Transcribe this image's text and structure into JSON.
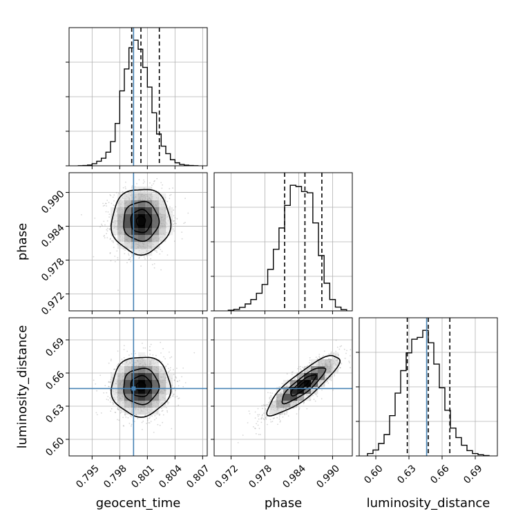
{
  "chart_data": {
    "type": "corner",
    "parameters": [
      "geocent_time",
      "phase",
      "luminosity_distance"
    ],
    "axis_labels": {
      "geocent_time": "geocent_time",
      "phase": "phase",
      "luminosity_distance": "luminosity_distance"
    },
    "ranges": {
      "geocent_time": [
        0.7925,
        0.8075
      ],
      "phase": [
        0.969,
        0.9935
      ],
      "luminosity_distance": [
        0.585,
        0.71
      ]
    },
    "ticks": {
      "geocent_time": {
        "values": [
          0.795,
          0.798,
          0.801,
          0.804,
          0.807
        ],
        "labels": [
          "0.795",
          "0.798",
          "0.801",
          "0.804",
          "0.807"
        ]
      },
      "phase": {
        "values": [
          0.972,
          0.978,
          0.984,
          0.99
        ],
        "labels": [
          "0.972",
          "0.978",
          "0.984",
          "0.990"
        ]
      },
      "luminosity_distance": {
        "values": [
          0.6,
          0.63,
          0.66,
          0.69
        ],
        "labels": [
          "0.60",
          "0.63",
          "0.66",
          "0.69"
        ]
      }
    },
    "truths": {
      "geocent_time": 0.7995,
      "phase": null,
      "luminosity_distance": 0.646
    },
    "quantiles": {
      "geocent_time": [
        0.7993,
        0.8003,
        0.8023
      ],
      "phase": [
        0.9815,
        0.9851,
        0.9881
      ],
      "luminosity_distance": [
        0.6285,
        0.6475,
        0.667
      ]
    },
    "histograms": {
      "geocent_time": {
        "edges": [
          0.7935,
          0.794,
          0.7945,
          0.795,
          0.7955,
          0.796,
          0.7965,
          0.797,
          0.7975,
          0.798,
          0.7985,
          0.799,
          0.7995,
          0.8,
          0.8005,
          0.801,
          0.8015,
          0.802,
          0.8025,
          0.803,
          0.8035,
          0.804,
          0.8045,
          0.805,
          0.8055,
          0.806,
          0.8065
        ],
        "counts": [
          1,
          2,
          5,
          14,
          30,
          50,
          90,
          160,
          280,
          495,
          640,
          780,
          830,
          770,
          650,
          520,
          350,
          210,
          130,
          80,
          40,
          20,
          9,
          4,
          2,
          1
        ]
      },
      "phase": {
        "edges": [
          0.9715,
          0.9725,
          0.9735,
          0.9745,
          0.9755,
          0.9765,
          0.9775,
          0.9785,
          0.9795,
          0.9805,
          0.9815,
          0.9825,
          0.9835,
          0.9845,
          0.9855,
          0.9865,
          0.9875,
          0.9885,
          0.9895,
          0.9905,
          0.9915,
          0.9925
        ],
        "counts": [
          5,
          12,
          28,
          55,
          90,
          140,
          210,
          330,
          490,
          660,
          840,
          1000,
          990,
          950,
          940,
          700,
          440,
          220,
          90,
          30,
          10
        ]
      },
      "luminosity_distance": {
        "edges": [
          0.5925,
          0.5975,
          0.6025,
          0.6075,
          0.6125,
          0.6175,
          0.6225,
          0.6275,
          0.6325,
          0.6375,
          0.6425,
          0.6475,
          0.6525,
          0.6575,
          0.6625,
          0.6675,
          0.6725,
          0.6775,
          0.6825,
          0.6875,
          0.6925,
          0.6975,
          0.7025
        ],
        "counts": [
          20,
          50,
          105,
          180,
          340,
          530,
          720,
          870,
          985,
          1000,
          1060,
          955,
          775,
          575,
          385,
          235,
          155,
          90,
          45,
          20,
          10,
          3
        ]
      }
    },
    "pairs": [
      {
        "x": "geocent_time",
        "y": "phase",
        "center": [
          0.8003,
          0.9849
        ],
        "sigma": [
          0.0016,
          0.0029
        ],
        "corr": 0.02,
        "contour_levels": [
          0.3,
          0.7,
          1.2,
          2.0
        ]
      },
      {
        "x": "geocent_time",
        "y": "luminosity_distance",
        "center": [
          0.8003,
          0.648
        ],
        "sigma": [
          0.0016,
          0.0135
        ],
        "corr": 0.02,
        "contour_levels": [
          0.3,
          0.7,
          1.2,
          2.0
        ]
      },
      {
        "x": "phase",
        "y": "luminosity_distance",
        "center": [
          0.9848,
          0.649
        ],
        "sigma": [
          0.0032,
          0.0135
        ],
        "corr": 0.86,
        "contour_levels": [
          0.3,
          0.7,
          1.2,
          2.0
        ]
      }
    ],
    "colors": {
      "truth": "#4682b4",
      "line": "#000000",
      "scatter": "#888888",
      "grid": "#b0b0b0"
    },
    "grid": true
  }
}
